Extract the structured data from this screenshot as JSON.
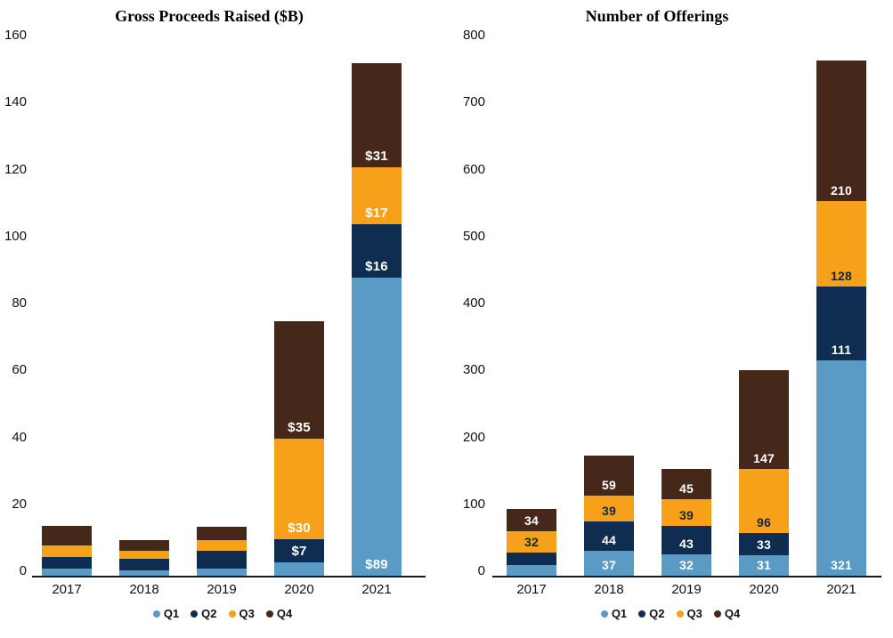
{
  "page": {
    "background": "#ffffff"
  },
  "chart_data": [
    {
      "type": "bar",
      "stacked": true,
      "title": "Gross Proceeds Raised ($B)",
      "categories": [
        "2017",
        "2018",
        "2019",
        "2020",
        "2021"
      ],
      "ylim": [
        0,
        160
      ],
      "yticks": [
        0,
        20,
        40,
        60,
        80,
        100,
        120,
        140,
        160
      ],
      "grid": false,
      "legend_position": "bottom",
      "series": [
        {
          "name": "Q1",
          "color": "#5a9bc5",
          "label_color": "#ffffff",
          "values": [
            2,
            1.5,
            2,
            4,
            89
          ],
          "labels": [
            "",
            "",
            "",
            "",
            "$89"
          ]
        },
        {
          "name": "Q2",
          "color": "#0e2d50",
          "label_color": "#ffffff",
          "values": [
            3.5,
            3.5,
            5.5,
            7,
            16
          ],
          "labels": [
            "",
            "",
            "",
            "$7",
            "$16"
          ]
        },
        {
          "name": "Q3",
          "color": "#f7a11a",
          "label_color": "#ffffff",
          "values": [
            3.5,
            2.5,
            3,
            30,
            17
          ],
          "labels": [
            "",
            "",
            "",
            "$30",
            "$17"
          ]
        },
        {
          "name": "Q4",
          "color": "#46281a",
          "label_color": "#ffffff",
          "values": [
            6,
            3,
            4,
            35,
            31
          ],
          "labels": [
            "",
            "",
            "",
            "$35",
            "$31"
          ]
        }
      ]
    },
    {
      "type": "bar",
      "stacked": true,
      "title": "Number of Offerings",
      "categories": [
        "2017",
        "2018",
        "2019",
        "2020",
        "2021"
      ],
      "ylim": [
        0,
        800
      ],
      "yticks": [
        0,
        100,
        200,
        300,
        400,
        500,
        600,
        700,
        800
      ],
      "grid": false,
      "legend_position": "bottom",
      "series": [
        {
          "name": "Q1",
          "color": "#5a9bc5",
          "label_color": "#ffffff",
          "values": [
            16,
            37,
            32,
            31,
            321
          ],
          "labels": [
            "",
            "37",
            "32",
            "31",
            "321"
          ]
        },
        {
          "name": "Q2",
          "color": "#0e2d50",
          "label_color": "#ffffff",
          "values": [
            18,
            44,
            43,
            33,
            111
          ],
          "labels": [
            "",
            "44",
            "43",
            "33",
            "111"
          ]
        },
        {
          "name": "Q3",
          "color": "#f7a11a",
          "label_color": "#14243d",
          "values": [
            32,
            39,
            39,
            96,
            128
          ],
          "labels": [
            "32",
            "39",
            "39",
            "96",
            "128"
          ]
        },
        {
          "name": "Q4",
          "color": "#46281a",
          "label_color": "#ffffff",
          "values": [
            34,
            59,
            45,
            147,
            210
          ],
          "labels": [
            "34",
            "59",
            "45",
            "147",
            "210"
          ]
        }
      ]
    }
  ]
}
